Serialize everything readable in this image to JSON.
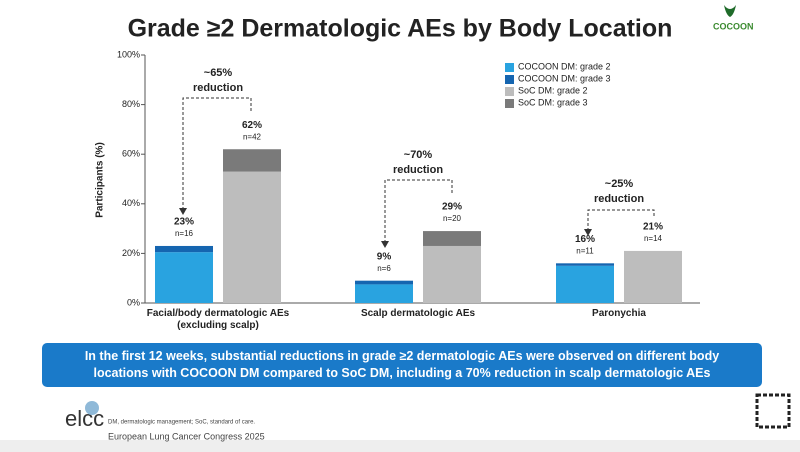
{
  "chart_data": {
    "type": "bar",
    "title": "Grade ≥2 Dermatologic AEs by Body Location",
    "y_label": "Participants (%)",
    "categories": [
      "Facial/body dermatologic AEs (excluding scalp)",
      "Scalp dermatologic AEs",
      "Paronychia"
    ],
    "series": [
      {
        "name": "COCOON DM: grade 2",
        "color": "#29a3e0",
        "values": [
          20.5,
          7.5,
          15
        ]
      },
      {
        "name": "COCOON DM: grade 3",
        "color": "#1565b0",
        "values": [
          2.5,
          1.5,
          1
        ]
      },
      {
        "name": "SoC DM: grade 2",
        "color": "#bdbdbd",
        "values": [
          53,
          23,
          21
        ]
      },
      {
        "name": "SoC DM: grade 3",
        "color": "#7a7a7a",
        "values": [
          9,
          6,
          0
        ]
      }
    ],
    "bar_labels": [
      [
        {
          "label": "23%",
          "n": "n=16"
        },
        {
          "label": "62%",
          "n": "n=42"
        }
      ],
      [
        {
          "label": "9%",
          "n": "n=6"
        },
        {
          "label": "29%",
          "n": "n=20"
        }
      ],
      [
        {
          "label": "16%",
          "n": "n=11"
        },
        {
          "label": "21%",
          "n": "n=14"
        }
      ]
    ],
    "annotations": [
      [
        "~65%",
        "reduction"
      ],
      [
        "~70%",
        "reduction"
      ],
      [
        "~25%",
        "reduction"
      ]
    ],
    "ylim": [
      0,
      100
    ],
    "yticks": [
      {
        "value": 0,
        "label": "0%"
      },
      {
        "value": 20,
        "label": "20%"
      },
      {
        "value": 40,
        "label": "40%"
      },
      {
        "value": 60,
        "label": "60%"
      },
      {
        "value": 80,
        "label": "80%"
      },
      {
        "value": 100,
        "label": "100%"
      }
    ],
    "legend": "upper right"
  },
  "message": "In the first 12 weeks, substantial reductions in grade ≥2 dermatologic AEs were observed on different body locations with COCOON DM compared to SoC DM, including a 70% reduction in scalp dermatologic AEs",
  "footer": {
    "logo": "elcc",
    "note": "DM, dermatologic management; SoC, standard of care.",
    "congress": "European Lung Cancer Congress 2025",
    "study": "COCOON"
  }
}
